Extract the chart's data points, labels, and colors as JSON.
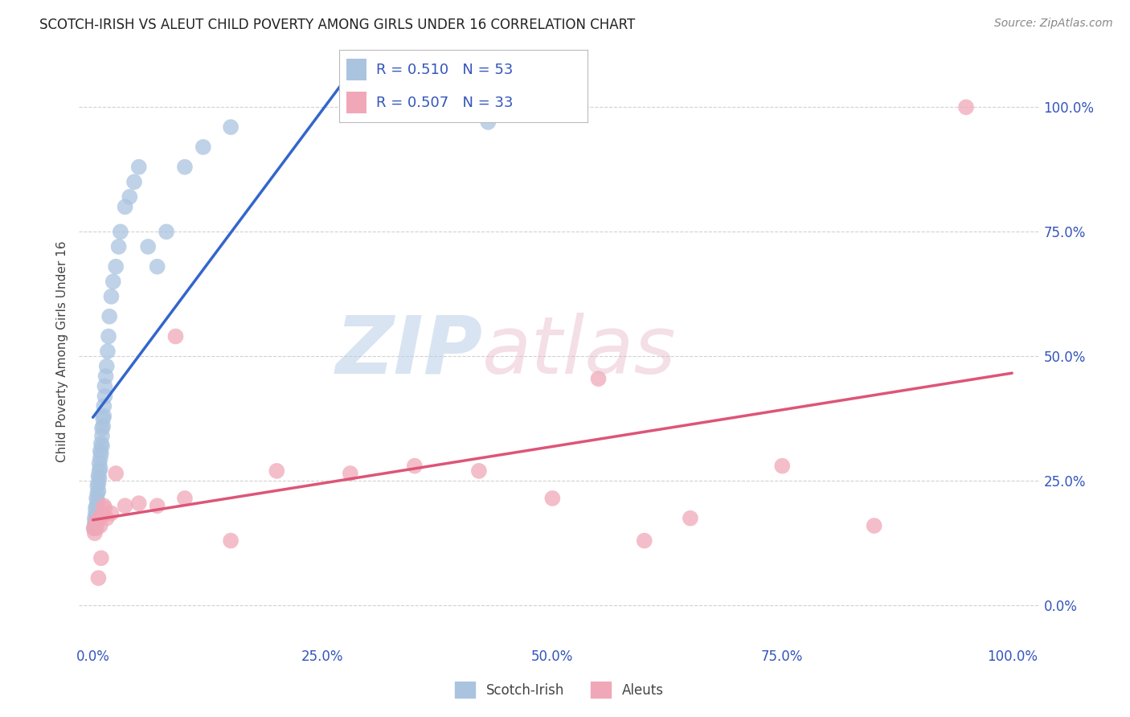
{
  "title": "SCOTCH-IRISH VS ALEUT CHILD POVERTY AMONG GIRLS UNDER 16 CORRELATION CHART",
  "source": "Source: ZipAtlas.com",
  "ylabel": "Child Poverty Among Girls Under 16",
  "background_color": "#ffffff",
  "scotch_irish_color": "#aac4e0",
  "aleut_color": "#f0a8b8",
  "scotch_irish_line_color": "#3366cc",
  "aleut_line_color": "#dd5577",
  "scotch_irish_R": 0.51,
  "scotch_irish_N": 53,
  "aleut_R": 0.507,
  "aleut_N": 33,
  "scotch_irish_x": [
    0.001,
    0.002,
    0.002,
    0.003,
    0.003,
    0.003,
    0.004,
    0.004,
    0.004,
    0.005,
    0.005,
    0.005,
    0.006,
    0.006,
    0.006,
    0.007,
    0.007,
    0.007,
    0.008,
    0.008,
    0.008,
    0.009,
    0.009,
    0.01,
    0.01,
    0.01,
    0.011,
    0.011,
    0.012,
    0.012,
    0.013,
    0.013,
    0.014,
    0.015,
    0.016,
    0.017,
    0.018,
    0.02,
    0.022,
    0.025,
    0.028,
    0.03,
    0.035,
    0.04,
    0.045,
    0.05,
    0.06,
    0.07,
    0.08,
    0.1,
    0.12,
    0.15,
    0.43
  ],
  "scotch_irish_y": [
    0.155,
    0.165,
    0.175,
    0.17,
    0.185,
    0.195,
    0.18,
    0.2,
    0.215,
    0.21,
    0.225,
    0.24,
    0.23,
    0.245,
    0.26,
    0.255,
    0.27,
    0.285,
    0.275,
    0.295,
    0.31,
    0.305,
    0.325,
    0.32,
    0.34,
    0.355,
    0.36,
    0.375,
    0.38,
    0.4,
    0.42,
    0.44,
    0.46,
    0.48,
    0.51,
    0.54,
    0.58,
    0.62,
    0.65,
    0.68,
    0.72,
    0.75,
    0.8,
    0.82,
    0.85,
    0.88,
    0.72,
    0.68,
    0.75,
    0.88,
    0.92,
    0.96,
    0.97
  ],
  "aleut_x": [
    0.001,
    0.002,
    0.003,
    0.004,
    0.005,
    0.006,
    0.007,
    0.008,
    0.009,
    0.01,
    0.011,
    0.012,
    0.013,
    0.015,
    0.02,
    0.025,
    0.035,
    0.05,
    0.07,
    0.09,
    0.1,
    0.15,
    0.2,
    0.28,
    0.35,
    0.42,
    0.5,
    0.55,
    0.6,
    0.65,
    0.75,
    0.85,
    0.95
  ],
  "aleut_y": [
    0.155,
    0.145,
    0.165,
    0.155,
    0.17,
    0.055,
    0.175,
    0.16,
    0.095,
    0.185,
    0.18,
    0.2,
    0.195,
    0.175,
    0.185,
    0.265,
    0.2,
    0.205,
    0.2,
    0.54,
    0.215,
    0.13,
    0.27,
    0.265,
    0.28,
    0.27,
    0.215,
    0.455,
    0.13,
    0.175,
    0.28,
    0.16,
    1.0
  ],
  "yticks": [
    0.0,
    0.25,
    0.5,
    0.75,
    1.0
  ],
  "ytick_labels": [
    "0.0%",
    "25.0%",
    "50.0%",
    "75.0%",
    "100.0%"
  ],
  "xticks": [
    0.0,
    0.25,
    0.5,
    0.75,
    1.0
  ],
  "xtick_labels": [
    "0.0%",
    "25.0%",
    "50.0%",
    "75.0%",
    "100.0%"
  ],
  "tick_color": "#3355bb",
  "grid_color": "#cccccc"
}
